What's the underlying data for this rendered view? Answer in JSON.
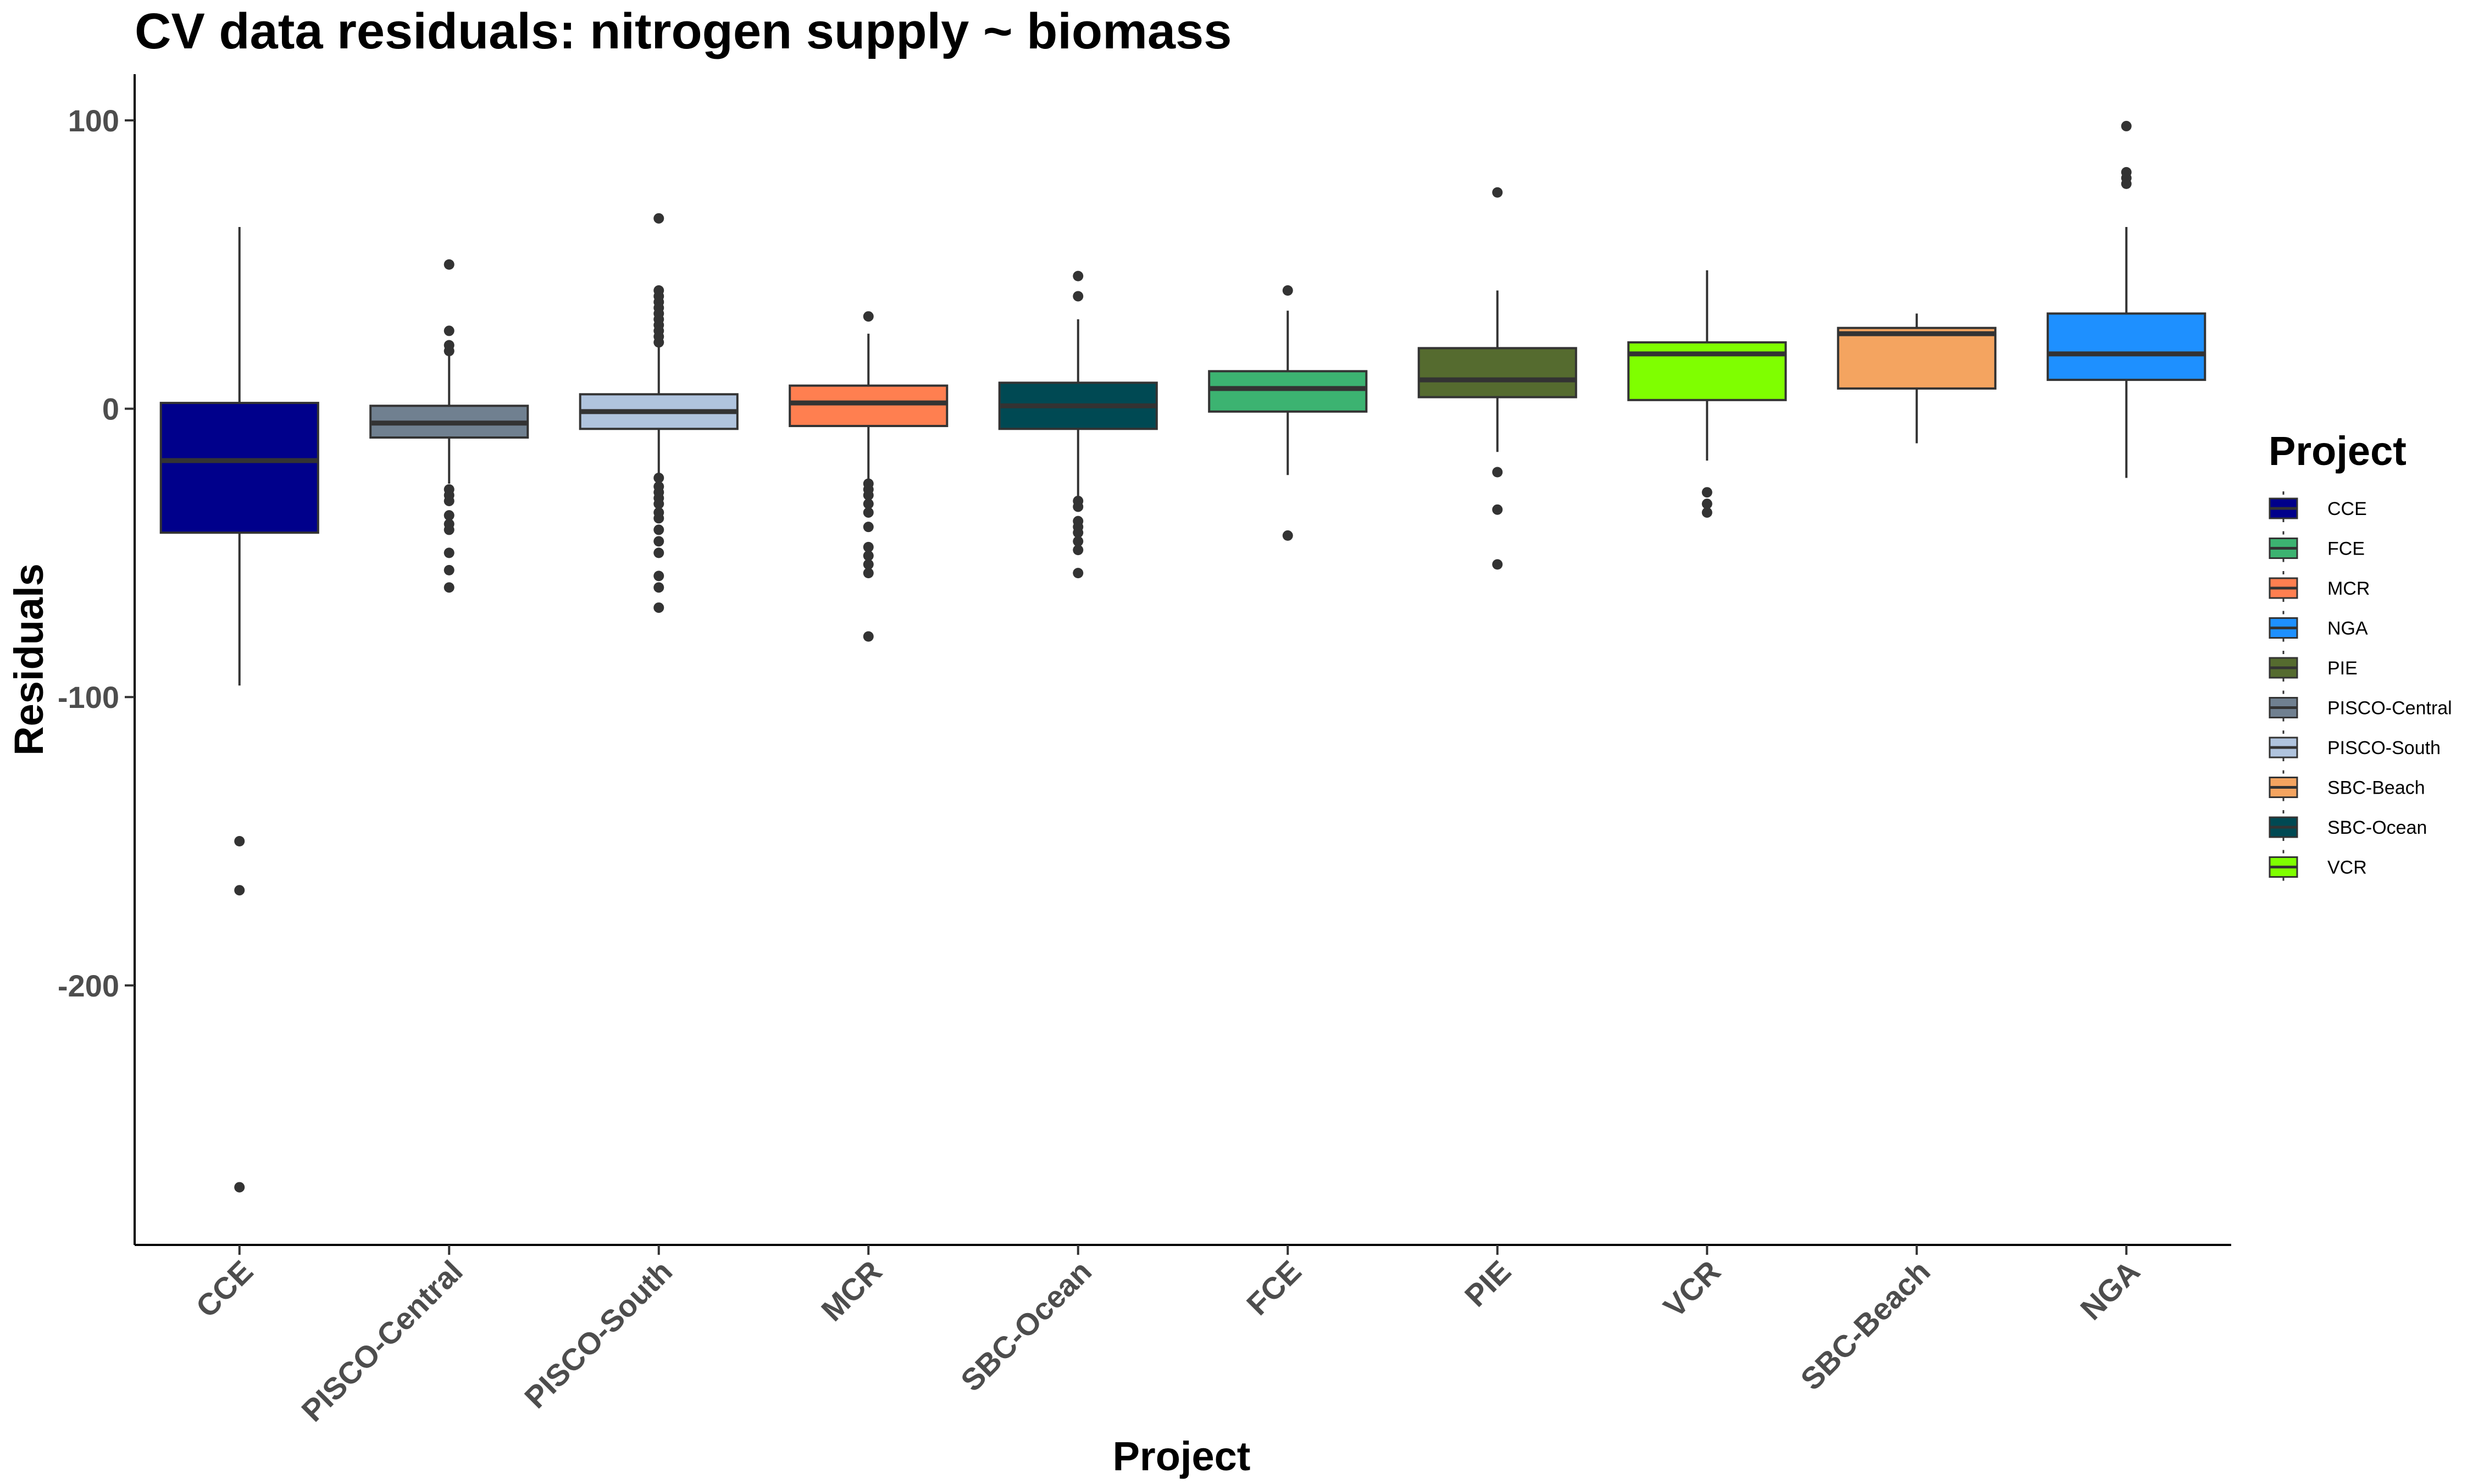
{
  "chart_data": {
    "type": "box",
    "title": "CV data residuals: nitrogen supply ~ biomass",
    "xlabel": "Project",
    "ylabel": "Residuals",
    "ylim": [
      -290,
      116
    ],
    "yticks": [
      100,
      0,
      -100,
      -200
    ],
    "yticklabels": [
      "100",
      "0",
      "-100",
      "-200"
    ],
    "grid": false,
    "legend": {
      "title": "Project",
      "position": "right",
      "entries": [
        "CCE",
        "FCE",
        "MCR",
        "NGA",
        "PIE",
        "PISCO-Central",
        "PISCO-South",
        "SBC-Beach",
        "SBC-Ocean",
        "VCR"
      ]
    },
    "colors": {
      "CCE": "#00008B",
      "FCE": "#3CB371",
      "MCR": "#FF7F50",
      "NGA": "#1E90FF",
      "PIE": "#556B2F",
      "PISCO-Central": "#708090",
      "PISCO-South": "#B0C4DE",
      "SBC-Beach": "#F4A460",
      "SBC-Ocean": "#004953",
      "VCR": "#7FFF00"
    },
    "categories": [
      "CCE",
      "PISCO-Central",
      "PISCO-South",
      "MCR",
      "SBC-Ocean",
      "FCE",
      "PIE",
      "VCR",
      "SBC-Beach",
      "NGA"
    ],
    "boxes": [
      {
        "name": "CCE",
        "q1": -43,
        "median": -18,
        "q3": 2,
        "whisker_low": -96,
        "whisker_high": 63,
        "outliers": [
          -150,
          -167,
          -270
        ]
      },
      {
        "name": "PISCO-Central",
        "q1": -10,
        "median": -5,
        "q3": 1,
        "whisker_low": -26,
        "whisker_high": 19,
        "outliers": [
          50,
          27,
          22,
          20,
          -28,
          -30,
          -32,
          -37,
          -40,
          -42,
          -50,
          -56,
          -62
        ]
      },
      {
        "name": "PISCO-South",
        "q1": -7,
        "median": -1,
        "q3": 5,
        "whisker_low": -24,
        "whisker_high": 22,
        "outliers": [
          66,
          41,
          39,
          37,
          35,
          33,
          31,
          29,
          27,
          25,
          23,
          -24,
          -27,
          -29,
          -31,
          -33,
          -36,
          -38,
          -42,
          -46,
          -50,
          -58,
          -62,
          -69
        ]
      },
      {
        "name": "MCR",
        "q1": -6,
        "median": 2,
        "q3": 8,
        "whisker_low": -25,
        "whisker_high": 26,
        "outliers": [
          32,
          -26,
          -28,
          -30,
          -33,
          -36,
          -41,
          -48,
          -51,
          -54,
          -57,
          -79
        ]
      },
      {
        "name": "SBC-Ocean",
        "q1": -7,
        "median": 1,
        "q3": 9,
        "whisker_low": -31,
        "whisker_high": 31,
        "outliers": [
          46,
          39,
          -32,
          -34,
          -39,
          -41,
          -43,
          -46,
          -49,
          -57
        ]
      },
      {
        "name": "FCE",
        "q1": -1,
        "median": 7,
        "q3": 13,
        "whisker_low": -23,
        "whisker_high": 34,
        "outliers": [
          41,
          -44
        ]
      },
      {
        "name": "PIE",
        "q1": 4,
        "median": 10,
        "q3": 21,
        "whisker_low": -15,
        "whisker_high": 41,
        "outliers": [
          75,
          -22,
          -35,
          -54
        ]
      },
      {
        "name": "VCR",
        "q1": 3,
        "median": 19,
        "q3": 23,
        "whisker_low": -18,
        "whisker_high": 48,
        "outliers": [
          -29,
          -33,
          -36
        ]
      },
      {
        "name": "SBC-Beach",
        "q1": 7,
        "median": 26,
        "q3": 28,
        "whisker_low": -12,
        "whisker_high": 33,
        "outliers": []
      },
      {
        "name": "NGA",
        "q1": 10,
        "median": 19,
        "q3": 33,
        "whisker_low": -24,
        "whisker_high": 63,
        "outliers": [
          98,
          82,
          80,
          78
        ]
      }
    ]
  }
}
